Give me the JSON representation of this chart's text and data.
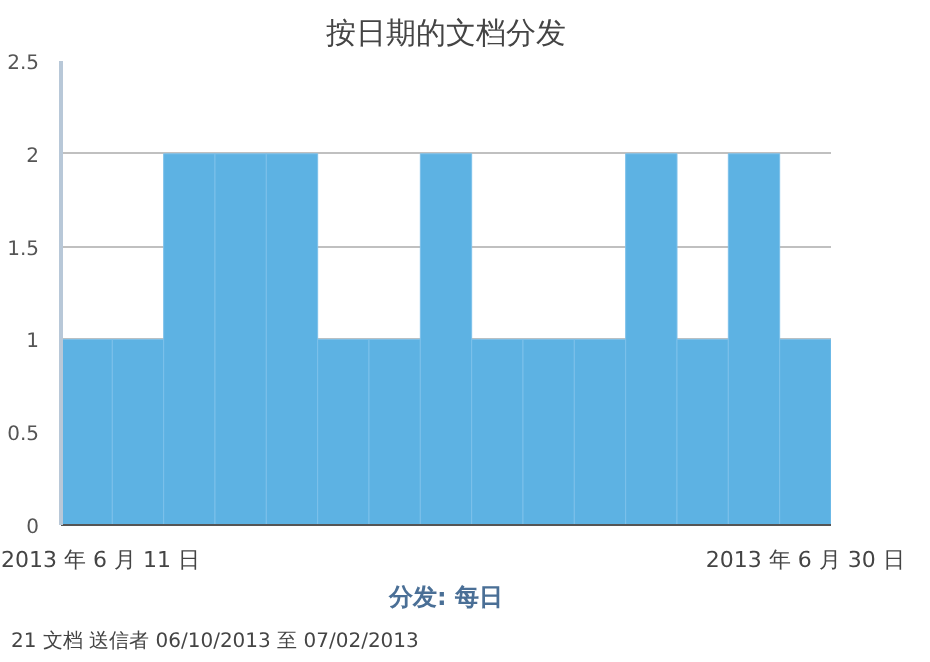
{
  "chart_data": {
    "type": "bar",
    "title": "按日期的文档分发",
    "xlabel": "分发: 每日",
    "categories": [
      "2013 年 6 月 11 日",
      null,
      null,
      null,
      null,
      null,
      null,
      null,
      null,
      null,
      null,
      null,
      null,
      null,
      "2013 年 6 月 30 日"
    ],
    "values": [
      1,
      1,
      2,
      2,
      2,
      1,
      1,
      2,
      1,
      1,
      1,
      2,
      1,
      2,
      1
    ],
    "color": "#5db2e3",
    "ylim": [
      0,
      2.5
    ],
    "yticks": [
      0,
      0.5,
      1,
      1.5,
      2,
      2.5
    ],
    "grid": "y",
    "annotations": [
      "21 文档 送信者 06/10/2013 至 07/02/2013"
    ]
  }
}
